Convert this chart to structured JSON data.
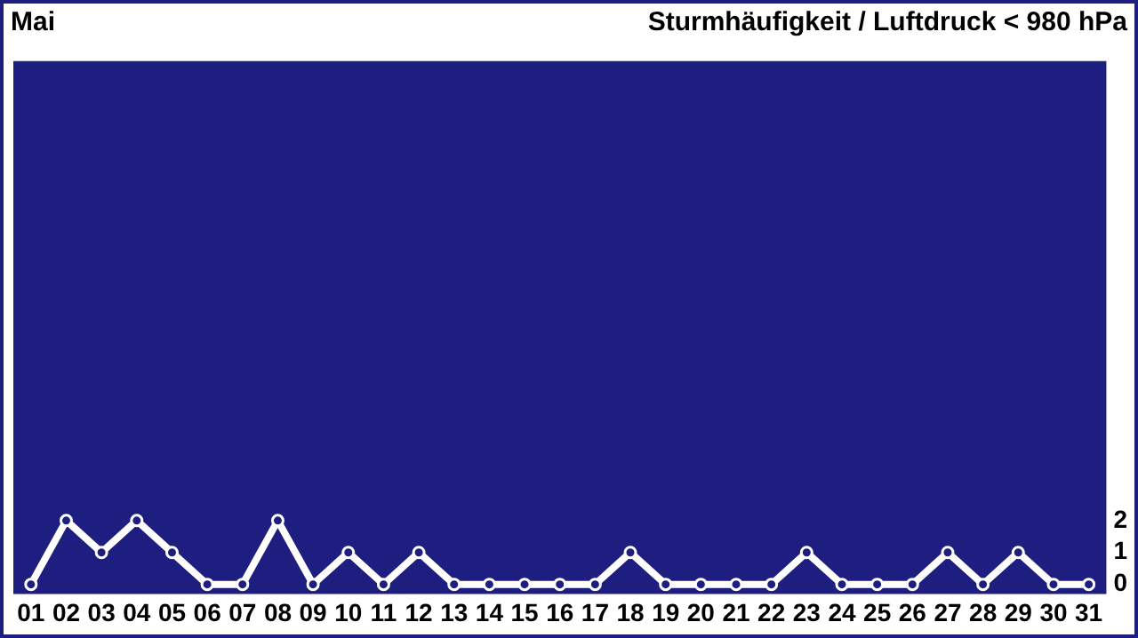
{
  "chart_data": {
    "type": "line",
    "title": "Mai",
    "subtitle": "Sturmhäufigkeit / Luftdruck < 980 hPa",
    "categories": [
      "01",
      "02",
      "03",
      "04",
      "05",
      "06",
      "07",
      "08",
      "09",
      "10",
      "11",
      "12",
      "13",
      "14",
      "15",
      "16",
      "17",
      "18",
      "19",
      "20",
      "21",
      "22",
      "23",
      "24",
      "25",
      "26",
      "27",
      "28",
      "29",
      "30",
      "31"
    ],
    "series": [
      {
        "color": "#ffffff",
        "values": [
          0,
          2,
          1,
          2,
          1,
          0,
          0,
          2,
          0,
          1,
          0,
          1,
          0,
          0,
          0,
          0,
          0,
          1,
          0,
          0,
          0,
          0,
          1,
          0,
          0,
          0,
          1,
          0,
          1,
          0,
          0
        ]
      }
    ],
    "ylim": [
      -0.3,
      16.4
    ],
    "yticks": [
      0,
      1,
      2
    ],
    "grid": false,
    "legend": false,
    "marker": "circle",
    "line_style": "solid"
  }
}
